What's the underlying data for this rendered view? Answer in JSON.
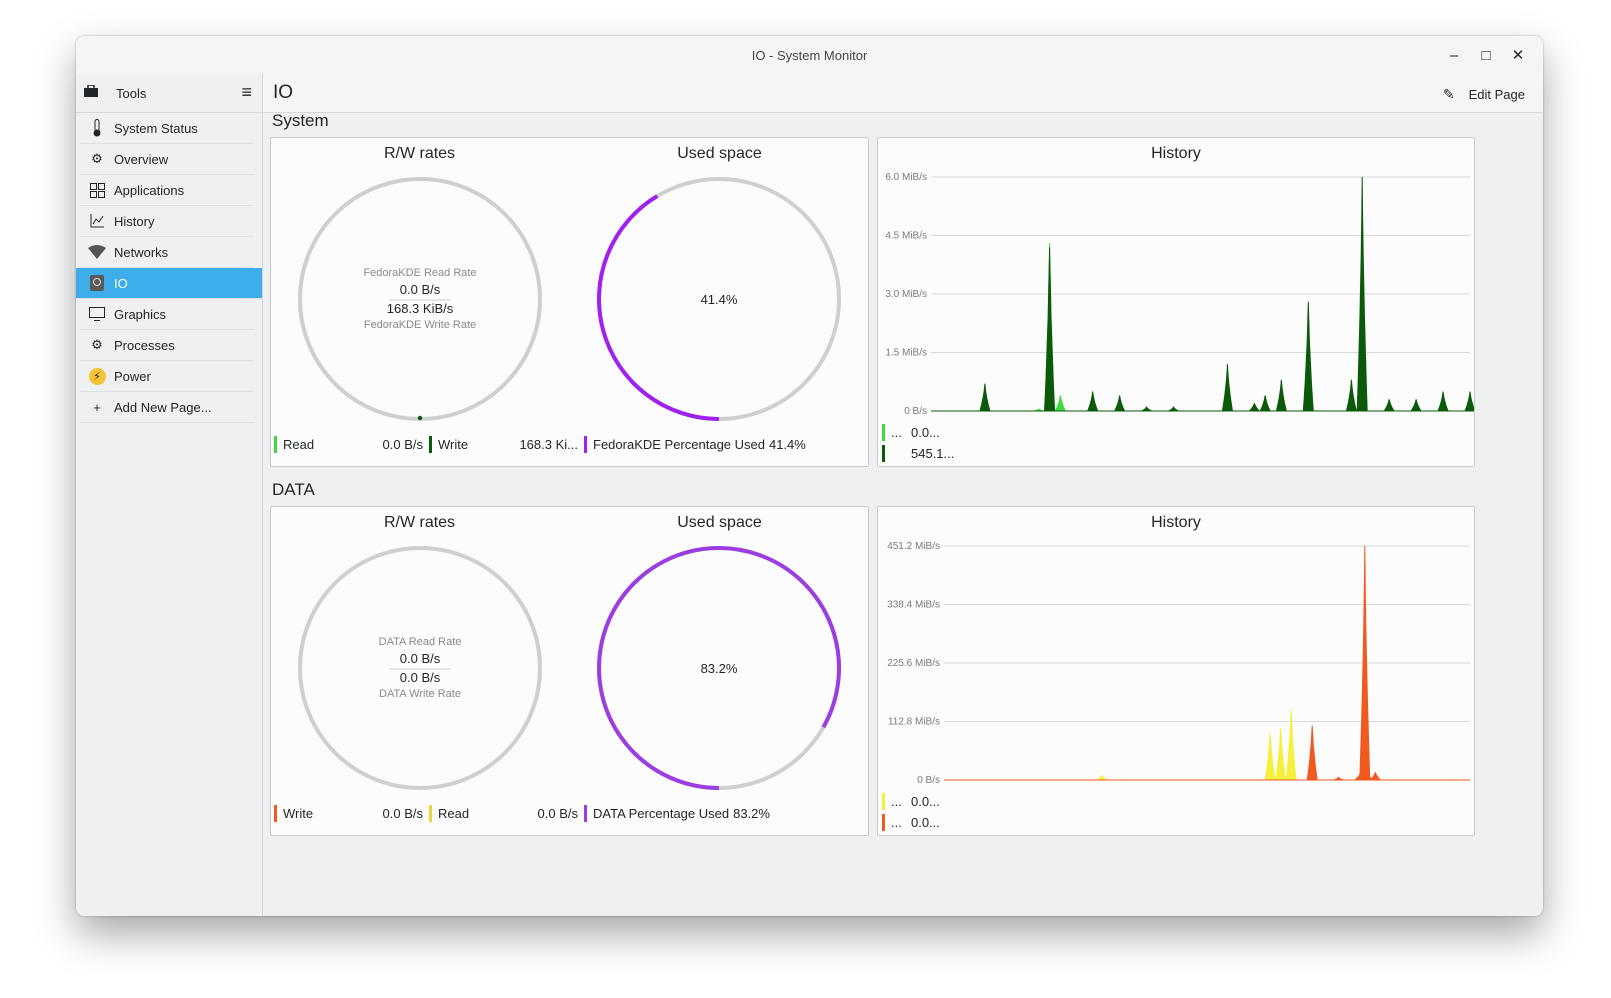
{
  "window": {
    "title": "IO - System Monitor"
  },
  "sidebar": {
    "header": "Tools",
    "items": [
      {
        "label": "System Status",
        "icon": "thermometer-icon"
      },
      {
        "label": "Overview",
        "icon": "overview-icon"
      },
      {
        "label": "Applications",
        "icon": "applications-grid-icon"
      },
      {
        "label": "History",
        "icon": "history-chart-icon"
      },
      {
        "label": "Networks",
        "icon": "network-wifi-icon"
      },
      {
        "label": "IO",
        "icon": "disk-icon",
        "active": true
      },
      {
        "label": "Graphics",
        "icon": "monitor-icon"
      },
      {
        "label": "Processes",
        "icon": "gears-icon"
      },
      {
        "label": "Power",
        "icon": "power-bolt-icon"
      },
      {
        "label": "Add New Page...",
        "icon": "plus-icon"
      }
    ]
  },
  "header": {
    "title": "IO",
    "edit_label": "Edit Page"
  },
  "sections": [
    {
      "title": "System",
      "rw": {
        "title": "R/W rates",
        "read_label": "FedoraKDE Read Rate",
        "read_value": "0.0 B/s",
        "write_value": "168.3 KiB/s",
        "write_label": "FedoraKDE Write Rate",
        "legend": [
          {
            "name": "Read",
            "value": "0.0 B/s",
            "color": "#3ed93e"
          },
          {
            "name": "Write",
            "value": "168.3 Ki...",
            "color": "#0a5a0a"
          }
        ]
      },
      "used": {
        "title": "Used space",
        "percent": 41.4,
        "label": "41.4%",
        "legend_name": "FedoraKDE Percentage Used",
        "legend_value": "41.4%",
        "color": "#a020f0"
      },
      "history": {
        "title": "History",
        "legend": [
          {
            "name": "...",
            "value": "0.0...",
            "color": "#3ed93e"
          },
          {
            "name": "",
            "value": "545.1...",
            "color": "#0a5a0a"
          }
        ]
      }
    },
    {
      "title": "DATA",
      "rw": {
        "title": "R/W rates",
        "read_label": "DATA Read Rate",
        "read_value": "0.0 B/s",
        "write_value": "0.0 B/s",
        "write_label": "DATA Write Rate",
        "legend": [
          {
            "name": "Write",
            "value": "0.0 B/s",
            "color": "#f05a1e"
          },
          {
            "name": "Read",
            "value": "0.0 B/s",
            "color": "#f0d23c"
          }
        ]
      },
      "used": {
        "title": "Used space",
        "percent": 83.2,
        "label": "83.2%",
        "legend_name": "DATA Percentage Used",
        "legend_value": "83.2%",
        "color": "#9b3de0"
      },
      "history": {
        "title": "History",
        "legend": [
          {
            "name": "...",
            "value": "0.0...",
            "color": "#f5f03c"
          },
          {
            "name": "...",
            "value": "0.0...",
            "color": "#f05a1e"
          }
        ]
      }
    }
  ],
  "chart_data": [
    {
      "type": "area",
      "title": "History",
      "y_ticks": [
        "0 B/s",
        "1.5 MiB/s",
        "3.0 MiB/s",
        "4.5 MiB/s",
        "6.0 MiB/s"
      ],
      "ylim": [
        0,
        6.0
      ],
      "series": [
        {
          "color": "#3ed93e",
          "x": [
            0,
            10,
            20,
            22,
            24,
            30,
            35,
            40,
            45,
            50,
            55,
            60,
            65,
            70,
            75,
            80,
            85,
            90,
            95,
            100
          ],
          "values": [
            0,
            0,
            0.05,
            4.3,
            0.4,
            0.3,
            0,
            0,
            0,
            0,
            0,
            0,
            0,
            0,
            0,
            0,
            0,
            0,
            0,
            0
          ]
        },
        {
          "color": "#0a5a0a",
          "x": [
            0,
            10,
            20,
            22,
            24,
            30,
            35,
            40,
            45,
            50,
            55,
            60,
            62,
            65,
            70,
            73,
            78,
            80,
            82,
            85,
            90,
            95,
            100
          ],
          "values": [
            0,
            0.7,
            0,
            4.2,
            0,
            0.5,
            0.4,
            0.1,
            0.1,
            0,
            1.2,
            0.2,
            0.4,
            0.8,
            2.8,
            0,
            0.8,
            6.0,
            0,
            0.3,
            0.3,
            0.5,
            0.5
          ]
        }
      ]
    },
    {
      "type": "area",
      "title": "History",
      "y_ticks": [
        "0 B/s",
        "112.8 MiB/s",
        "225.6 MiB/s",
        "338.4 MiB/s",
        "451.2 MiB/s"
      ],
      "ylim": [
        0,
        451.2
      ],
      "series": [
        {
          "color": "#f5f03c",
          "x": [
            0,
            25,
            30,
            60,
            62,
            64,
            66,
            68,
            70,
            100
          ],
          "values": [
            0,
            0,
            8,
            0,
            90,
            100,
            135,
            0,
            0,
            0
          ]
        },
        {
          "color": "#f05a1e",
          "x": [
            0,
            68,
            70,
            72,
            75,
            79,
            80,
            81,
            82,
            83,
            100
          ],
          "values": [
            0,
            0,
            105,
            0,
            5,
            10,
            451,
            5,
            15,
            0,
            0
          ]
        }
      ]
    }
  ]
}
